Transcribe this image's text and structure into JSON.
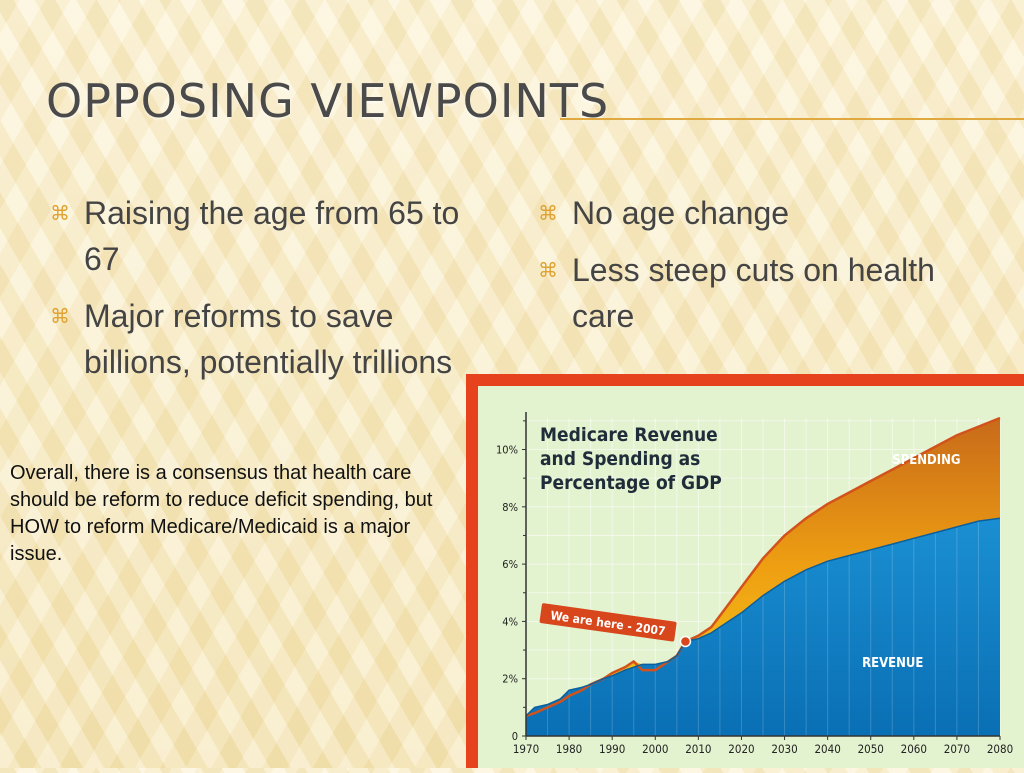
{
  "slide": {
    "title": "OPPOSING VIEWPOINTS",
    "left_bullets": [
      "Raising the age from 65 to 67",
      "Major reforms to save billions, potentially trillions"
    ],
    "right_bullets": [
      "No age change",
      "Less steep cuts on health care"
    ],
    "note": "Overall, there is a consensus that health care should be reform to reduce deficit spending, but HOW to reform Medicare/Medicaid is a major issue.",
    "bullet_icon": "x-mark-icon",
    "colors": {
      "accent": "#e0a232",
      "frame": "#e6421d",
      "title": "#4a4a4a"
    }
  },
  "chart_data": {
    "type": "area",
    "title": "Medicare Revenue and Spending as Percentage of GDP",
    "title_lines": [
      "Medicare Revenue",
      "and Spending as",
      "Percentage of GDP"
    ],
    "x_ticks": [
      "1970",
      "1980",
      "1990",
      "2000",
      "2010",
      "2020",
      "2030",
      "2040",
      "2050",
      "2060",
      "2070",
      "2080"
    ],
    "y_ticks": [
      "0",
      "2%",
      "4%",
      "6%",
      "8%",
      "10%"
    ],
    "xlim": [
      1970,
      2080
    ],
    "ylim": [
      0,
      11.1
    ],
    "grid": true,
    "annotation": {
      "label": "We are here - 2007",
      "x": 2007,
      "y": 3.3
    },
    "x": [
      1970,
      1972,
      1975,
      1978,
      1980,
      1983,
      1985,
      1988,
      1990,
      1993,
      1995,
      1997,
      2000,
      2003,
      2005,
      2007,
      2010,
      2013,
      2015,
      2020,
      2025,
      2030,
      2035,
      2040,
      2045,
      2050,
      2055,
      2060,
      2065,
      2070,
      2075,
      2080
    ],
    "series": [
      {
        "name": "REVENUE",
        "color": "#0c7fc4",
        "values": [
          0.7,
          1.0,
          1.1,
          1.3,
          1.6,
          1.7,
          1.8,
          2.0,
          2.1,
          2.3,
          2.4,
          2.5,
          2.5,
          2.6,
          2.8,
          3.3,
          3.4,
          3.6,
          3.8,
          4.3,
          4.9,
          5.4,
          5.8,
          6.1,
          6.3,
          6.5,
          6.7,
          6.9,
          7.1,
          7.3,
          7.5,
          7.6
        ]
      },
      {
        "name": "SPENDING",
        "color": "#f2b810",
        "values": [
          0.7,
          0.8,
          1.0,
          1.2,
          1.4,
          1.6,
          1.8,
          2.0,
          2.2,
          2.4,
          2.6,
          2.3,
          2.3,
          2.6,
          2.8,
          3.3,
          3.5,
          3.8,
          4.2,
          5.2,
          6.2,
          7.0,
          7.6,
          8.1,
          8.5,
          8.9,
          9.3,
          9.7,
          10.1,
          10.5,
          10.8,
          11.1
        ]
      }
    ]
  }
}
